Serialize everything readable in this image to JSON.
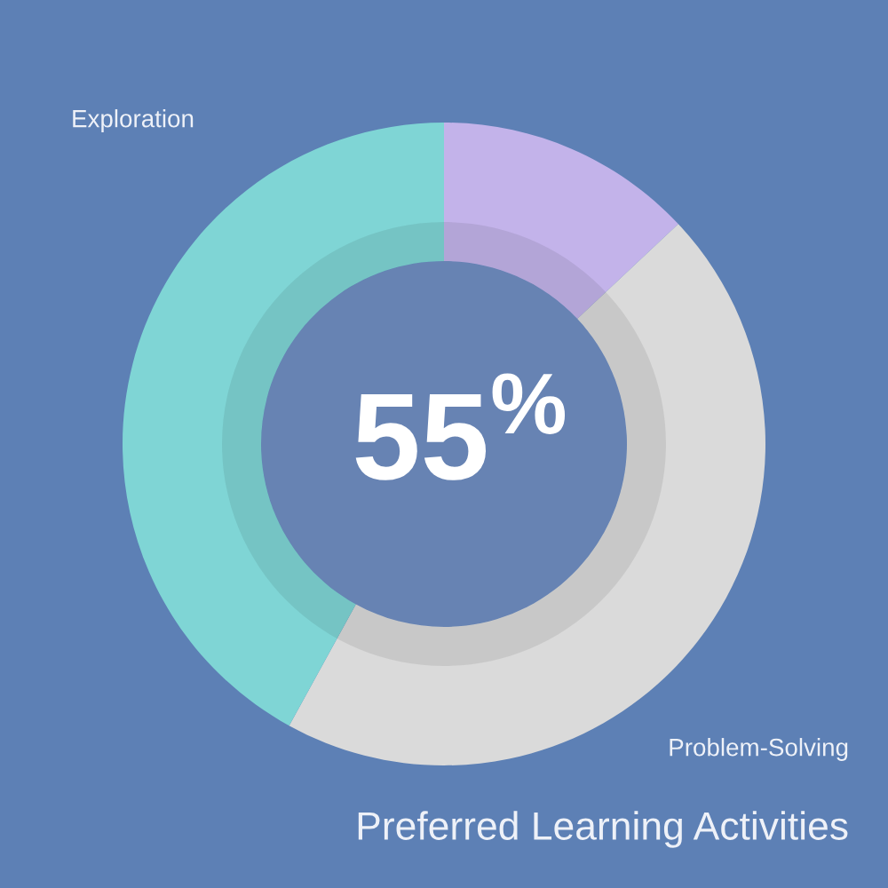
{
  "chart_data": {
    "type": "donut",
    "title": "Preferred Learning Activities",
    "categories": [
      null,
      "Problem-Solving",
      "Exploration"
    ],
    "values": [
      13,
      45,
      42
    ],
    "colors": [
      "#c3b3ea",
      "#dadada",
      "#7fd5d5"
    ],
    "annotations": [
      "55$^{%}$"
    ]
  }
}
